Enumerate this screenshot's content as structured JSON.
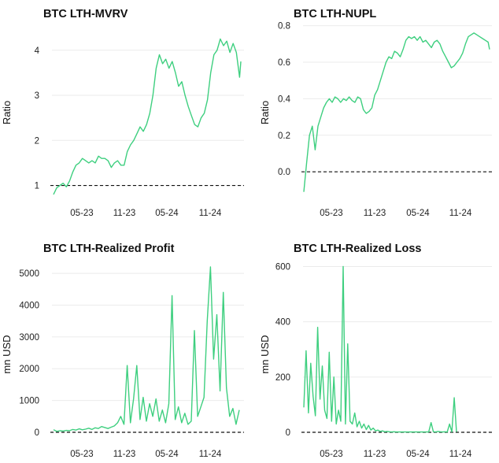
{
  "colors": {
    "line": "#3ecf7f",
    "reference": "#111111",
    "grid": "#ebebeb"
  },
  "chart_data": [
    {
      "type": "line",
      "title": "BTC LTH-MVRV",
      "xlabel": "",
      "ylabel": "Ratio",
      "x_ticks": [
        "05-23",
        "11-23",
        "05-24",
        "11-24"
      ],
      "y_ticks": [
        "1",
        "2",
        "3",
        "4"
      ],
      "ylim": [
        0.8,
        4.45
      ],
      "reference_line": 1,
      "series": [
        {
          "values": [
            [
              0.0,
              0.8
            ],
            [
              0.025,
              0.95
            ],
            [
              0.05,
              1.0
            ],
            [
              0.075,
              1.05
            ],
            [
              0.1,
              0.97
            ],
            [
              0.125,
              1.1
            ],
            [
              0.15,
              1.3
            ],
            [
              0.175,
              1.45
            ],
            [
              0.2,
              1.5
            ],
            [
              0.225,
              1.6
            ],
            [
              0.25,
              1.55
            ],
            [
              0.275,
              1.5
            ],
            [
              0.3,
              1.55
            ],
            [
              0.325,
              1.5
            ],
            [
              0.35,
              1.65
            ],
            [
              0.375,
              1.6
            ],
            [
              0.4,
              1.6
            ],
            [
              0.425,
              1.55
            ],
            [
              0.45,
              1.4
            ],
            [
              0.475,
              1.5
            ],
            [
              0.5,
              1.55
            ],
            [
              0.525,
              1.45
            ],
            [
              0.55,
              1.45
            ],
            [
              0.575,
              1.75
            ],
            [
              0.6,
              1.9
            ],
            [
              0.625,
              2.0
            ],
            [
              0.65,
              2.15
            ],
            [
              0.675,
              2.3
            ],
            [
              0.7,
              2.2
            ],
            [
              0.725,
              2.35
            ],
            [
              0.75,
              2.6
            ],
            [
              0.775,
              3.0
            ],
            [
              0.8,
              3.6
            ],
            [
              0.825,
              3.9
            ],
            [
              0.85,
              3.7
            ],
            [
              0.875,
              3.8
            ],
            [
              0.9,
              3.6
            ],
            [
              0.925,
              3.75
            ],
            [
              0.95,
              3.5
            ],
            [
              0.975,
              3.2
            ],
            [
              1.0,
              3.3
            ],
            [
              1.025,
              3.0
            ],
            [
              1.05,
              2.75
            ],
            [
              1.075,
              2.55
            ],
            [
              1.1,
              2.35
            ],
            [
              1.125,
              2.3
            ],
            [
              1.15,
              2.5
            ],
            [
              1.175,
              2.6
            ],
            [
              1.2,
              2.9
            ],
            [
              1.225,
              3.5
            ],
            [
              1.25,
              3.9
            ],
            [
              1.275,
              4.0
            ],
            [
              1.3,
              4.25
            ],
            [
              1.325,
              4.1
            ],
            [
              1.35,
              4.2
            ],
            [
              1.375,
              3.95
            ],
            [
              1.4,
              4.15
            ],
            [
              1.425,
              3.95
            ],
            [
              1.45,
              3.4
            ],
            [
              1.46,
              3.75
            ]
          ]
        }
      ]
    },
    {
      "type": "line",
      "title": "BTC LTH-NUPL",
      "xlabel": "",
      "ylabel": "Ratio",
      "x_ticks": [
        "05-23",
        "11-23",
        "05-24",
        "11-24"
      ],
      "y_ticks": [
        "0.0",
        "0.2",
        "0.4",
        "0.6",
        "0.8"
      ],
      "ylim": [
        -0.12,
        0.82
      ],
      "reference_line": 0,
      "series": [
        {
          "values": [
            [
              0.0,
              -0.11
            ],
            [
              0.02,
              0.05
            ],
            [
              0.04,
              0.2
            ],
            [
              0.06,
              0.25
            ],
            [
              0.08,
              0.12
            ],
            [
              0.1,
              0.25
            ],
            [
              0.12,
              0.3
            ],
            [
              0.14,
              0.35
            ],
            [
              0.16,
              0.38
            ],
            [
              0.18,
              0.4
            ],
            [
              0.2,
              0.38
            ],
            [
              0.22,
              0.41
            ],
            [
              0.24,
              0.4
            ],
            [
              0.26,
              0.38
            ],
            [
              0.28,
              0.4
            ],
            [
              0.3,
              0.39
            ],
            [
              0.32,
              0.41
            ],
            [
              0.34,
              0.39
            ],
            [
              0.36,
              0.38
            ],
            [
              0.38,
              0.41
            ],
            [
              0.4,
              0.4
            ],
            [
              0.42,
              0.34
            ],
            [
              0.44,
              0.32
            ],
            [
              0.46,
              0.33
            ],
            [
              0.48,
              0.35
            ],
            [
              0.5,
              0.42
            ],
            [
              0.52,
              0.45
            ],
            [
              0.54,
              0.5
            ],
            [
              0.56,
              0.55
            ],
            [
              0.58,
              0.6
            ],
            [
              0.6,
              0.63
            ],
            [
              0.62,
              0.62
            ],
            [
              0.64,
              0.66
            ],
            [
              0.66,
              0.65
            ],
            [
              0.68,
              0.63
            ],
            [
              0.7,
              0.67
            ],
            [
              0.72,
              0.72
            ],
            [
              0.74,
              0.74
            ],
            [
              0.76,
              0.73
            ],
            [
              0.78,
              0.74
            ],
            [
              0.8,
              0.72
            ],
            [
              0.82,
              0.74
            ],
            [
              0.84,
              0.71
            ],
            [
              0.86,
              0.72
            ],
            [
              0.88,
              0.7
            ],
            [
              0.9,
              0.68
            ],
            [
              0.92,
              0.71
            ],
            [
              0.94,
              0.72
            ],
            [
              0.96,
              0.7
            ],
            [
              0.98,
              0.66
            ],
            [
              1.0,
              0.63
            ],
            [
              1.02,
              0.6
            ],
            [
              1.04,
              0.57
            ],
            [
              1.06,
              0.58
            ],
            [
              1.08,
              0.6
            ],
            [
              1.1,
              0.62
            ],
            [
              1.12,
              0.65
            ],
            [
              1.14,
              0.7
            ],
            [
              1.16,
              0.74
            ],
            [
              1.18,
              0.75
            ],
            [
              1.2,
              0.76
            ],
            [
              1.22,
              0.75
            ],
            [
              1.24,
              0.74
            ],
            [
              1.26,
              0.73
            ],
            [
              1.28,
              0.72
            ],
            [
              1.3,
              0.71
            ],
            [
              1.31,
              0.67
            ]
          ]
        }
      ]
    },
    {
      "type": "line",
      "title": "BTC LTH-Realized Profit",
      "xlabel": "",
      "ylabel": "mn USD",
      "x_ticks": [
        "05-23",
        "11-23",
        "05-24",
        "11-24"
      ],
      "y_ticks": [
        "0",
        "1000",
        "2000",
        "3000",
        "4000",
        "5000"
      ],
      "ylim": [
        0,
        5300
      ],
      "reference_line": 0,
      "series": [
        {
          "values": [
            [
              0.0,
              80
            ],
            [
              0.025,
              30
            ],
            [
              0.05,
              50
            ],
            [
              0.075,
              40
            ],
            [
              0.1,
              60
            ],
            [
              0.125,
              50
            ],
            [
              0.15,
              90
            ],
            [
              0.175,
              70
            ],
            [
              0.2,
              110
            ],
            [
              0.225,
              80
            ],
            [
              0.25,
              100
            ],
            [
              0.275,
              130
            ],
            [
              0.3,
              90
            ],
            [
              0.325,
              140
            ],
            [
              0.35,
              120
            ],
            [
              0.375,
              180
            ],
            [
              0.4,
              150
            ],
            [
              0.425,
              120
            ],
            [
              0.45,
              160
            ],
            [
              0.475,
              200
            ],
            [
              0.5,
              300
            ],
            [
              0.525,
              500
            ],
            [
              0.55,
              250
            ],
            [
              0.575,
              2100
            ],
            [
              0.6,
              300
            ],
            [
              0.625,
              1050
            ],
            [
              0.65,
              2100
            ],
            [
              0.675,
              400
            ],
            [
              0.7,
              1100
            ],
            [
              0.725,
              350
            ],
            [
              0.75,
              900
            ],
            [
              0.775,
              500
            ],
            [
              0.8,
              1050
            ],
            [
              0.825,
              350
            ],
            [
              0.85,
              700
            ],
            [
              0.875,
              300
            ],
            [
              0.9,
              900
            ],
            [
              0.925,
              4300
            ],
            [
              0.95,
              400
            ],
            [
              0.975,
              800
            ],
            [
              1.0,
              300
            ],
            [
              1.025,
              600
            ],
            [
              1.05,
              250
            ],
            [
              1.075,
              350
            ],
            [
              1.1,
              3200
            ],
            [
              1.125,
              500
            ],
            [
              1.15,
              800
            ],
            [
              1.175,
              1100
            ],
            [
              1.2,
              3500
            ],
            [
              1.225,
              5200
            ],
            [
              1.25,
              2300
            ],
            [
              1.275,
              3700
            ],
            [
              1.3,
              1300
            ],
            [
              1.325,
              4400
            ],
            [
              1.35,
              1400
            ],
            [
              1.375,
              500
            ],
            [
              1.4,
              750
            ],
            [
              1.425,
              250
            ],
            [
              1.45,
              700
            ]
          ]
        }
      ]
    },
    {
      "type": "line",
      "title": "BTC LTH-Realized Loss",
      "xlabel": "",
      "ylabel": "mn USD",
      "x_ticks": [
        "05-23",
        "11-23",
        "05-24",
        "11-24"
      ],
      "y_ticks": [
        "0",
        "200",
        "400",
        "600"
      ],
      "ylim": [
        0,
        610
      ],
      "reference_line": 0,
      "series": [
        {
          "values": [
            [
              0.0,
              90
            ],
            [
              0.02,
              295
            ],
            [
              0.04,
              70
            ],
            [
              0.06,
              250
            ],
            [
              0.08,
              130
            ],
            [
              0.1,
              60
            ],
            [
              0.12,
              380
            ],
            [
              0.14,
              120
            ],
            [
              0.16,
              240
            ],
            [
              0.18,
              80
            ],
            [
              0.2,
              50
            ],
            [
              0.22,
              290
            ],
            [
              0.24,
              40
            ],
            [
              0.26,
              200
            ],
            [
              0.28,
              30
            ],
            [
              0.3,
              80
            ],
            [
              0.32,
              40
            ],
            [
              0.34,
              600
            ],
            [
              0.36,
              30
            ],
            [
              0.38,
              320
            ],
            [
              0.4,
              40
            ],
            [
              0.42,
              30
            ],
            [
              0.44,
              70
            ],
            [
              0.46,
              20
            ],
            [
              0.48,
              40
            ],
            [
              0.5,
              15
            ],
            [
              0.52,
              30
            ],
            [
              0.54,
              10
            ],
            [
              0.56,
              25
            ],
            [
              0.58,
              8
            ],
            [
              0.6,
              15
            ],
            [
              0.62,
              5
            ],
            [
              0.64,
              8
            ],
            [
              0.66,
              3
            ],
            [
              0.68,
              5
            ],
            [
              0.7,
              2
            ],
            [
              0.72,
              3
            ],
            [
              0.74,
              2
            ],
            [
              0.76,
              1
            ],
            [
              0.78,
              2
            ],
            [
              0.8,
              1
            ],
            [
              0.82,
              1
            ],
            [
              0.84,
              1
            ],
            [
              0.86,
              1
            ],
            [
              0.88,
              1
            ],
            [
              0.9,
              1
            ],
            [
              0.92,
              1
            ],
            [
              0.94,
              1
            ],
            [
              0.96,
              1
            ],
            [
              0.98,
              1
            ],
            [
              1.0,
              1
            ],
            [
              1.02,
              1
            ],
            [
              1.04,
              1
            ],
            [
              1.06,
              1
            ],
            [
              1.08,
              1
            ],
            [
              1.1,
              35
            ],
            [
              1.12,
              2
            ],
            [
              1.14,
              1
            ],
            [
              1.16,
              3
            ],
            [
              1.18,
              2
            ],
            [
              1.2,
              1
            ],
            [
              1.22,
              2
            ],
            [
              1.24,
              1
            ],
            [
              1.26,
              30
            ],
            [
              1.28,
              1
            ],
            [
              1.3,
              125
            ],
            [
              1.32,
              1
            ]
          ]
        }
      ]
    }
  ]
}
